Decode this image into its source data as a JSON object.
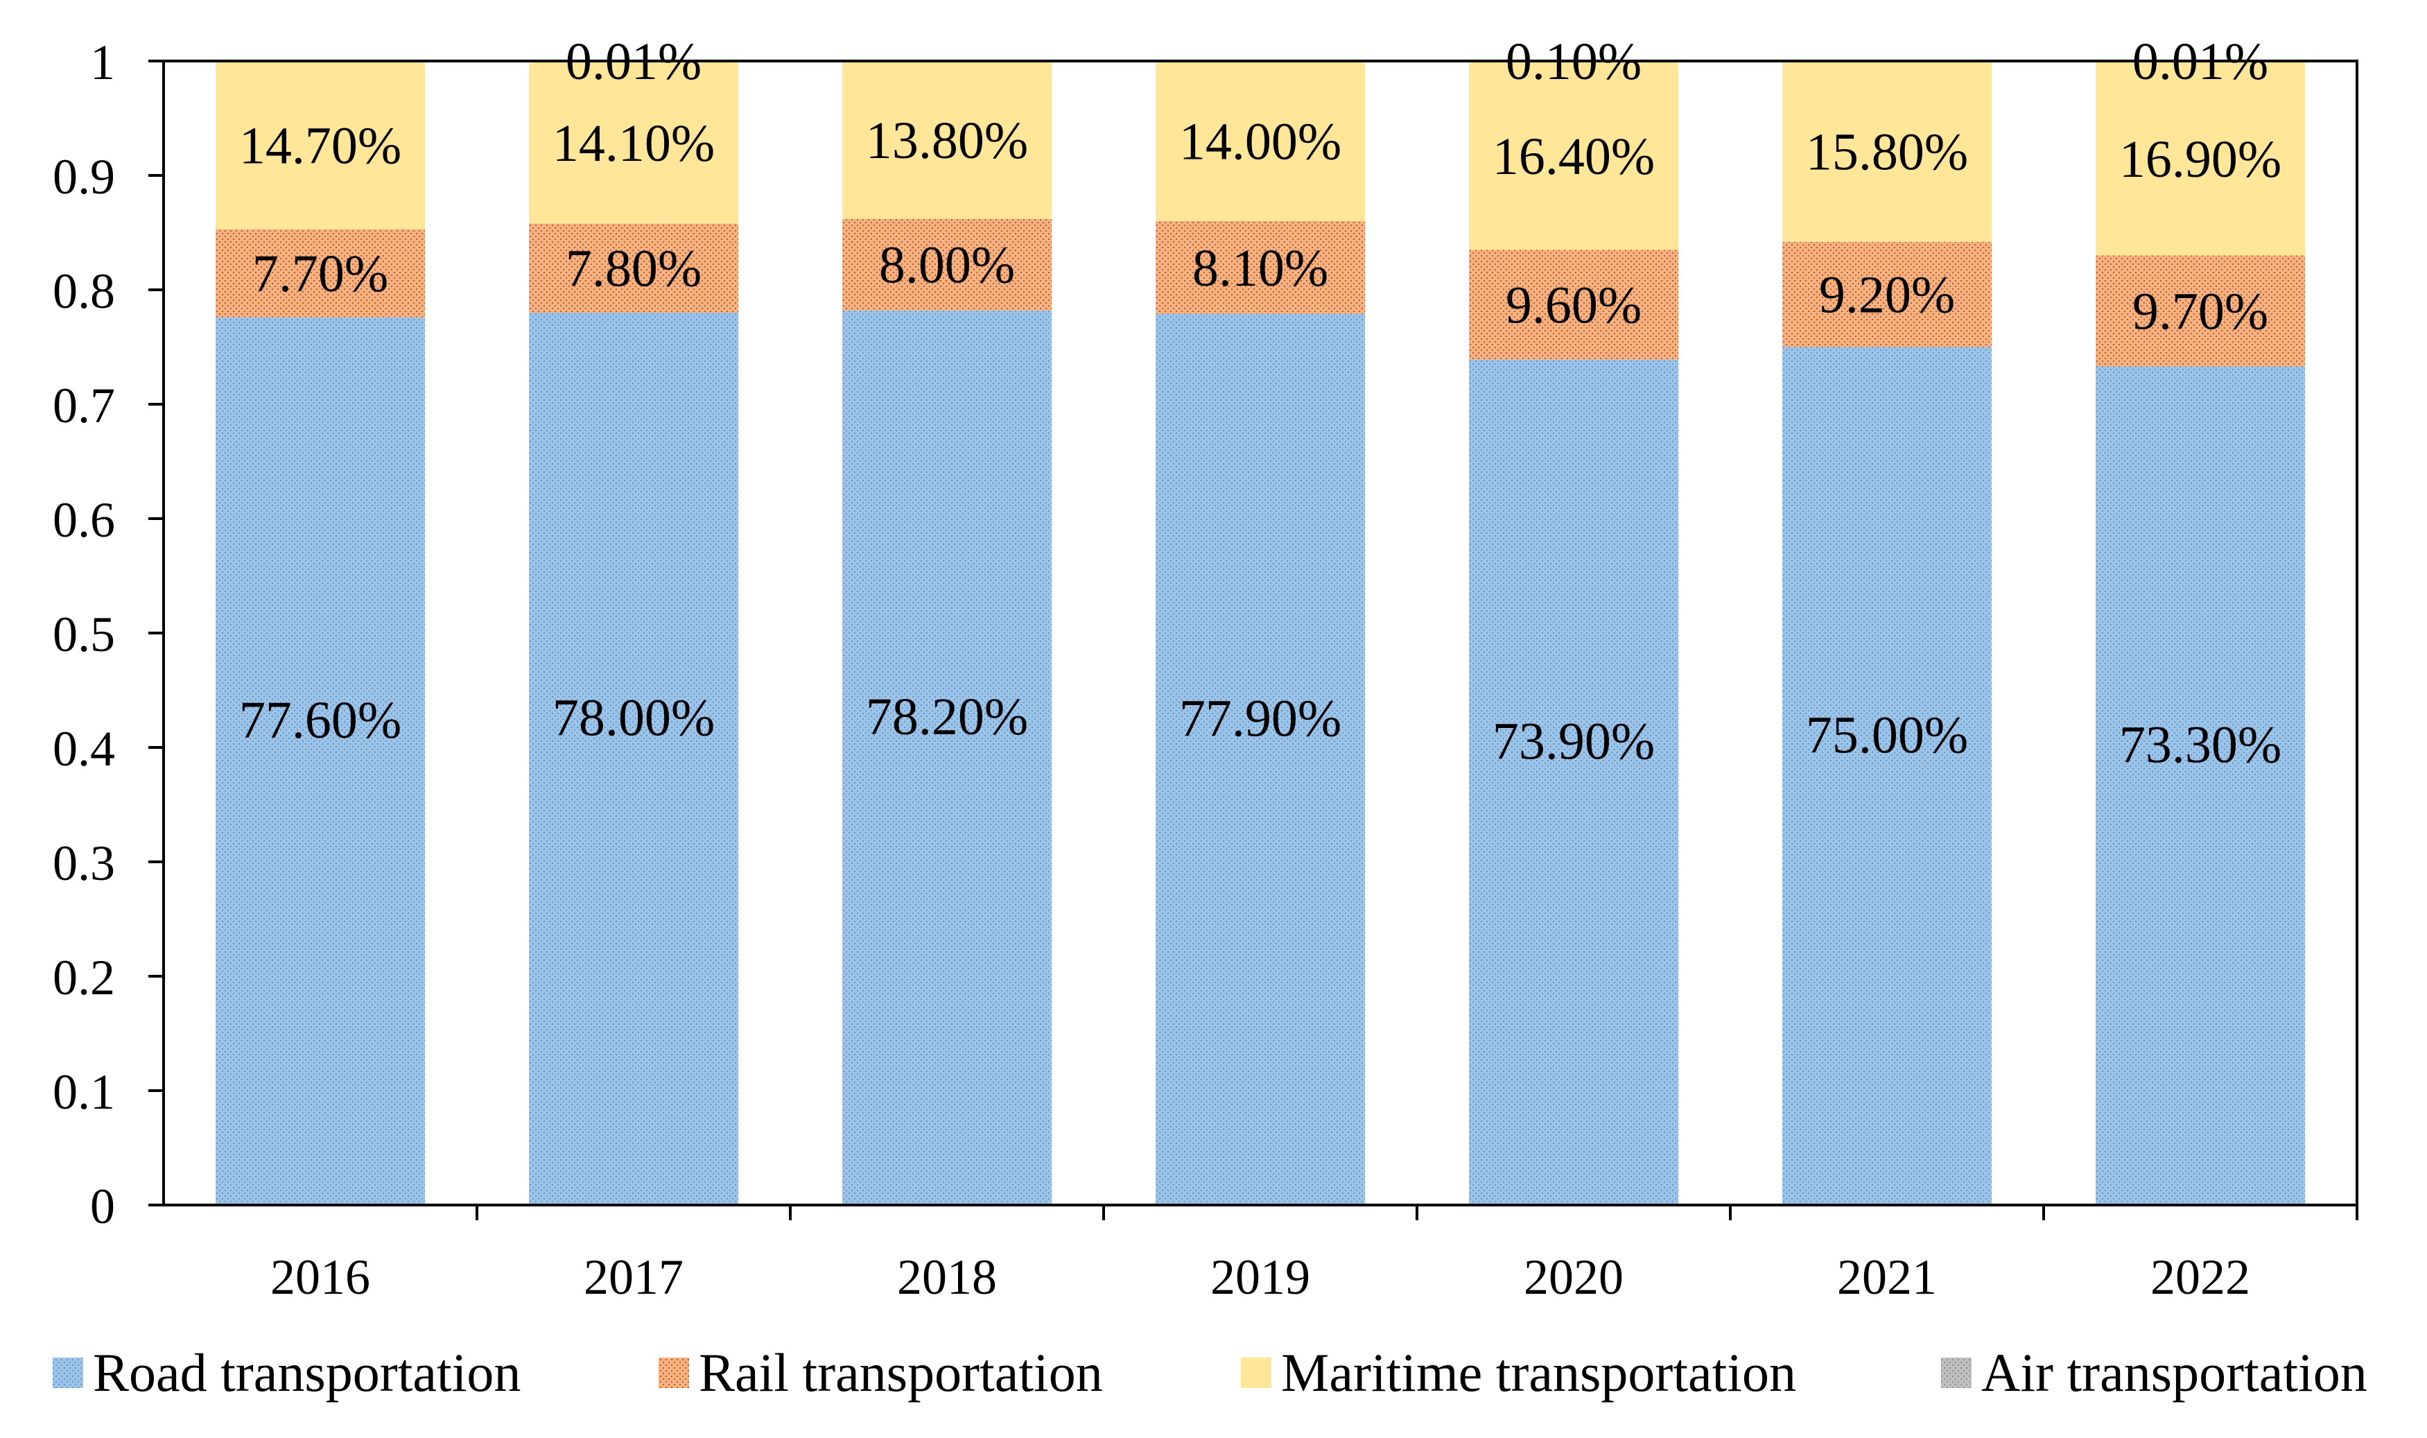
{
  "chart_data": {
    "type": "bar",
    "stacked": true,
    "title": "",
    "xlabel": "",
    "ylabel": "",
    "categories": [
      "2016",
      "2017",
      "2018",
      "2019",
      "2020",
      "2021",
      "2022"
    ],
    "ylim": [
      0,
      1
    ],
    "yticks": [
      "0",
      "0.1",
      "0.2",
      "0.3",
      "0.4",
      "0.5",
      "0.6",
      "0.7",
      "0.8",
      "0.9",
      "1"
    ],
    "grid": false,
    "legend_position": "bottom",
    "series": [
      {
        "name": "Road transportation",
        "color": "#9DC3E6",
        "pattern_color": "#5B9BD5",
        "values": [
          0.776,
          0.78,
          0.782,
          0.779,
          0.739,
          0.75,
          0.733
        ],
        "labels": [
          "77.60%",
          "78.00%",
          "78.20%",
          "77.90%",
          "73.90%",
          "75.00%",
          "73.30%"
        ]
      },
      {
        "name": "Rail transportation",
        "color": "#F4B183",
        "pattern_color": "#C55A11",
        "values": [
          0.077,
          0.078,
          0.08,
          0.081,
          0.096,
          0.092,
          0.097
        ],
        "labels": [
          "7.70%",
          "7.80%",
          "8.00%",
          "8.10%",
          "9.60%",
          "9.20%",
          "9.70%"
        ]
      },
      {
        "name": "Maritime transportation",
        "color": "#FFE699",
        "pattern_color": "#FFE699",
        "values": [
          0.147,
          0.141,
          0.138,
          0.14,
          0.164,
          0.158,
          0.169
        ],
        "labels": [
          "14.70%",
          "14.10%",
          "13.80%",
          "14.00%",
          "16.40%",
          "15.80%",
          "16.90%"
        ]
      },
      {
        "name": "Air transportation",
        "color": "#BFBFBF",
        "pattern_color": "#A5A5A5",
        "values": [
          0,
          0.0001,
          0,
          0,
          0.001,
          0,
          0.0001
        ],
        "labels": [
          "",
          "0.01%",
          "",
          "",
          "0.10%",
          "",
          "0.01%"
        ]
      }
    ]
  }
}
